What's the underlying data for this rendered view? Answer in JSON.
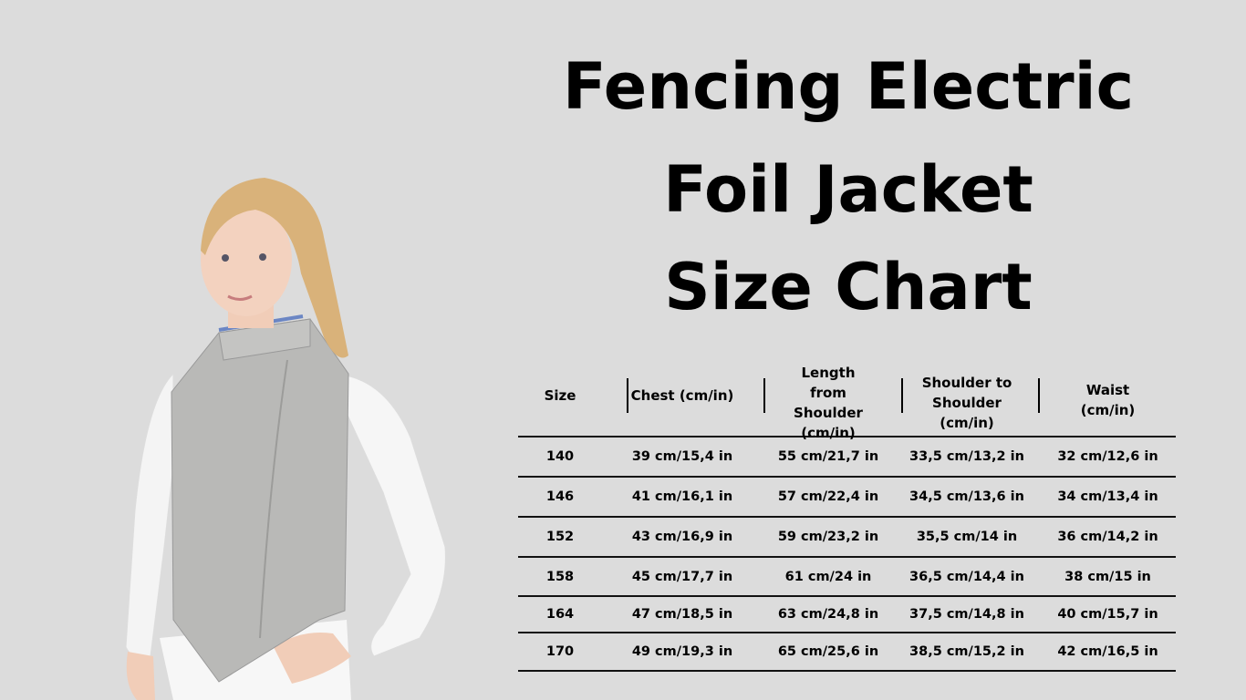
{
  "title": {
    "line1": "Fencing Electric",
    "line2": "Foil Jacket",
    "line3": "Size Chart"
  },
  "photo": {
    "description_icon": "girl-in-fencing-jacket"
  },
  "table": {
    "headers": [
      "Size",
      "Chest (cm/in)",
      "Length from Shoulder (cm/in)",
      "Shoulder to Shoulder (cm/in)",
      "Waist (cm/in)"
    ],
    "rows": [
      [
        "140",
        "39 cm/15,4 in",
        "55 cm/21,7 in",
        "33,5 cm/13,2 in",
        "32 cm/12,6 in"
      ],
      [
        "146",
        "41 cm/16,1 in",
        "57 cm/22,4 in",
        "34,5 cm/13,6 in",
        "34 cm/13,4 in"
      ],
      [
        "152",
        "43 cm/16,9 in",
        "59 cm/23,2 in",
        "35,5 cm/14 in",
        "36 cm/14,2 in"
      ],
      [
        "158",
        "45 cm/17,7 in",
        "61 cm/24 in",
        "36,5 cm/14,4 in",
        "38 cm/15 in"
      ],
      [
        "164",
        "47 cm/18,5 in",
        "63 cm/24,8 in",
        "37,5 cm/14,8 in",
        "40 cm/15,7 in"
      ],
      [
        "170",
        "49 cm/19,3 in",
        "65 cm/25,6 in",
        "38,5 cm/15,2 in",
        "42 cm/16,5 in"
      ]
    ]
  }
}
